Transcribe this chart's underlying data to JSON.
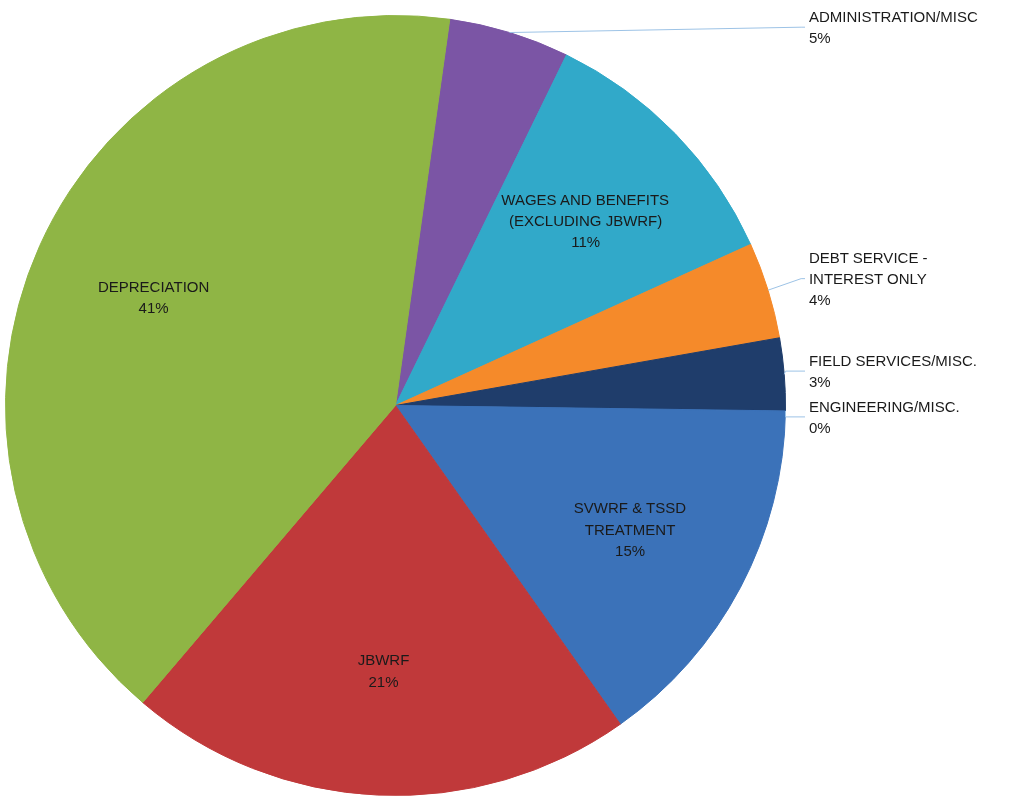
{
  "chart_data": {
    "type": "pie",
    "categories": [
      "ADMINISTRATION/MISC",
      "WAGES AND BENEFITS (EXCLUDING JBWRF)",
      "DEBT SERVICE - INTEREST ONLY",
      "FIELD SERVICES/MISC.",
      "ENGINEERING/MISC.",
      "SVWRF & TSSD TREATMENT",
      "JBWRF",
      "DEPRECIATION"
    ],
    "values": [
      5,
      11,
      4,
      3,
      0,
      15,
      21,
      41
    ],
    "colors": [
      "#7b55a5",
      "#31a9c9",
      "#f58a2a",
      "#1f3d6b",
      "#8b2020",
      "#3b72b9",
      "#c0393a",
      "#8fb545"
    ],
    "value_labels": [
      "5%",
      "11%",
      "4%",
      "3%",
      "0%",
      "15%",
      "21%",
      "41%"
    ]
  }
}
